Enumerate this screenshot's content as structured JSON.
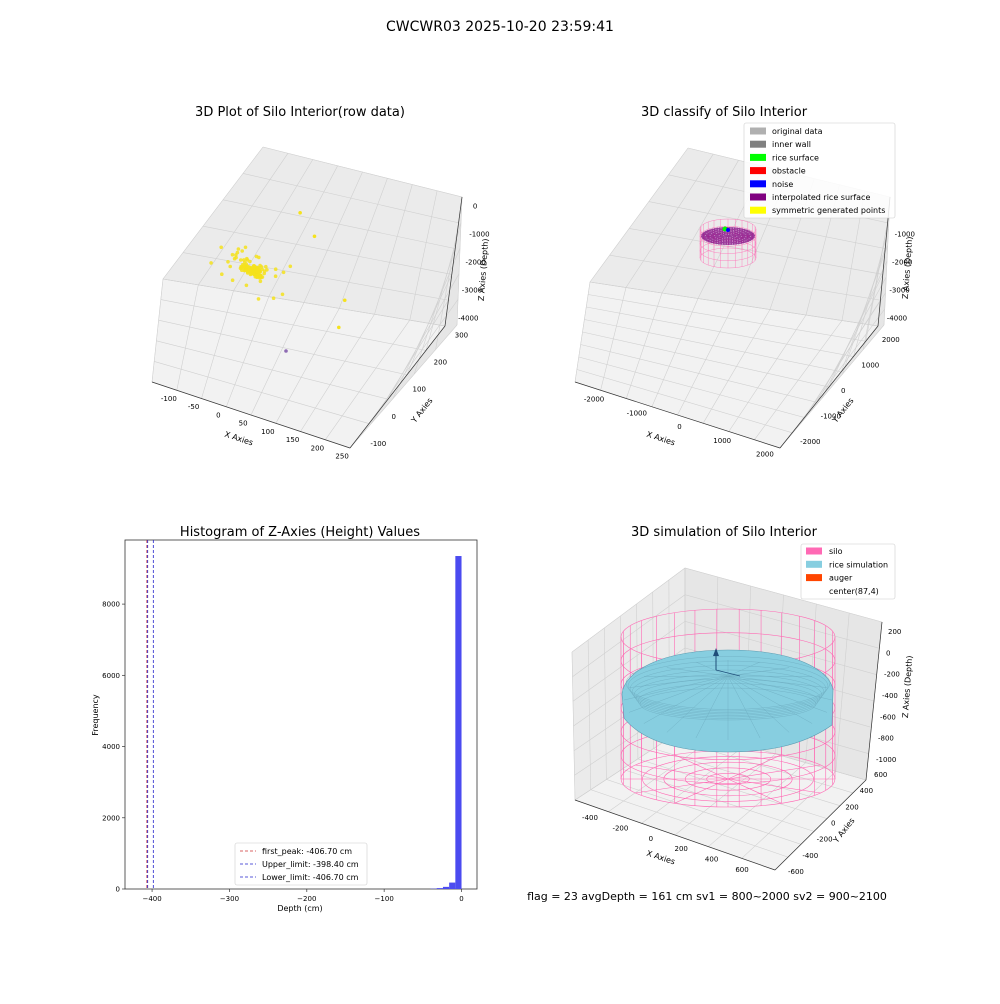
{
  "figure": {
    "suptitle": "CWCWR03 2025-10-20 23:59:41",
    "footer": "flag = 23  avgDepth = 161 cm  sv1 = 800~2000  sv2 = 900~2100"
  },
  "chart_data": [
    {
      "type": "scatter",
      "projection": "3d",
      "title": "3D Plot of Silo Interior(row data)",
      "xlabel": "X Axies",
      "ylabel": "Y Axies",
      "zlabel": "Z Axies (Depth)",
      "xticks": [
        "-100",
        "-50",
        "0",
        "50",
        "100",
        "150",
        "200",
        "250"
      ],
      "yticks": [
        "-100",
        "0",
        "100",
        "200",
        "300"
      ],
      "zticks": [
        "0",
        "-1000",
        "-2000",
        "-3000",
        "-4000"
      ],
      "xlim": [
        -130,
        270
      ],
      "ylim": [
        -130,
        320
      ],
      "zlim": [
        -4300,
        300
      ],
      "grid": true,
      "point_color": "#f5e21c",
      "outlier_color": "#8e6bb3",
      "cluster_center": [
        60,
        80,
        -900
      ],
      "point_count": 140
    },
    {
      "type": "scatter",
      "projection": "3d",
      "title": "3D classify of Silo Interior",
      "xlabel": "X Axies",
      "ylabel": "Y Axies",
      "zlabel": "Z Axies (Depth)",
      "xticks": [
        "-2000",
        "-1000",
        "0",
        "1000",
        "2000"
      ],
      "yticks": [
        "-2000",
        "-1000",
        "0",
        "1000",
        "2000"
      ],
      "zticks": [
        "-1000",
        "-2000",
        "-3000",
        "-4000"
      ],
      "xlim": [
        -2400,
        2400
      ],
      "ylim": [
        -2400,
        2400
      ],
      "zlim": [
        -4300,
        300
      ],
      "grid": true,
      "legend_position": "top-right",
      "legend": [
        {
          "label": "original data",
          "color": "#b0b0b0"
        },
        {
          "label": "inner wall",
          "color": "#808080"
        },
        {
          "label": "rice surface",
          "color": "#00ff00"
        },
        {
          "label": "obstacle",
          "color": "#ff0000"
        },
        {
          "label": "noise",
          "color": "#0000ff"
        },
        {
          "label": "interpolated rice surface",
          "color": "#800080"
        },
        {
          "label": "symmetric generated points",
          "color": "#ffff00"
        }
      ]
    },
    {
      "type": "bar",
      "title": "Histogram of Z-Axies (Height) Values",
      "xlabel": "Depth (cm)",
      "ylabel": "Frequency",
      "xticks": [
        -400,
        -300,
        -200,
        -100,
        0
      ],
      "yticks": [
        0,
        2000,
        4000,
        6000,
        8000
      ],
      "xlim": [
        -435,
        20
      ],
      "ylim": [
        0,
        9800
      ],
      "bar_color": "#4b4bf0",
      "bins": [
        {
          "x0": -40,
          "x1": -32,
          "value": 8
        },
        {
          "x0": -32,
          "x1": -24,
          "value": 25
        },
        {
          "x0": -24,
          "x1": -16,
          "value": 60
        },
        {
          "x0": -16,
          "x1": -8,
          "value": 180
        },
        {
          "x0": -8,
          "x1": 0,
          "value": 9350
        }
      ],
      "vlines": [
        {
          "x": -406.7,
          "color": "#cc3333",
          "label": "first_peak: -406.70 cm"
        },
        {
          "x": -398.4,
          "color": "#2222cc",
          "label": "Upper_limit: -398.40 cm"
        },
        {
          "x": -406.7,
          "color": "#2222cc",
          "label": "Lower_limit: -406.70 cm"
        }
      ],
      "legend_position": "bottom-center"
    },
    {
      "type": "surface",
      "projection": "3d",
      "title": "3D simulation of Silo Interior",
      "xlabel": "X Axies",
      "ylabel": "Y Axies",
      "zlabel": "Z Axies (Depth)",
      "xticks": [
        "-400",
        "-200",
        "0",
        "200",
        "400",
        "600"
      ],
      "yticks": [
        "-600",
        "-400",
        "-200",
        "0",
        "200",
        "400",
        "600"
      ],
      "zticks": [
        "200",
        "0",
        "-200",
        "-400",
        "-600",
        "-800",
        "-1000"
      ],
      "xlim": [
        -600,
        750
      ],
      "ylim": [
        -700,
        700
      ],
      "zlim": [
        -1050,
        280
      ],
      "grid": true,
      "legend_position": "top-right",
      "legend": [
        {
          "label": "silo",
          "color": "#ff69b4"
        },
        {
          "label": "rice simulation",
          "color": "#87cee0"
        },
        {
          "label": "auger",
          "color": "#ff4500"
        },
        {
          "label": "center(87,4)",
          "color": ""
        }
      ],
      "silo_radius": 450,
      "silo_top": 220,
      "silo_bottom": -1000,
      "rice_level": -200,
      "center": [
        87,
        4
      ]
    }
  ]
}
